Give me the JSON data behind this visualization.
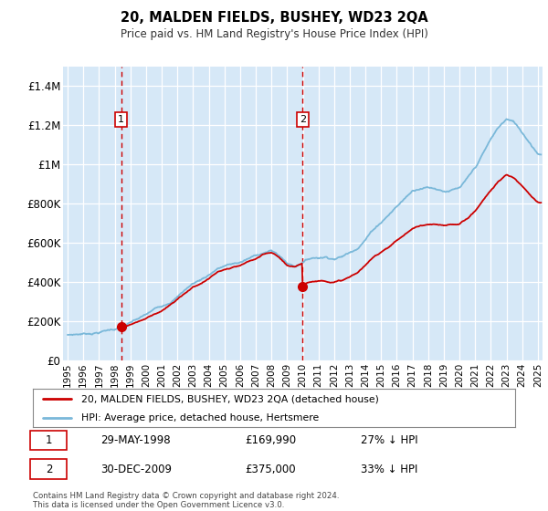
{
  "title": "20, MALDEN FIELDS, BUSHEY, WD23 2QA",
  "subtitle": "Price paid vs. HM Land Registry's House Price Index (HPI)",
  "ylim": [
    0,
    1500000
  ],
  "yticks": [
    0,
    200000,
    400000,
    600000,
    800000,
    1000000,
    1200000,
    1400000
  ],
  "ytick_labels": [
    "£0",
    "£200K",
    "£400K",
    "£600K",
    "£800K",
    "£1M",
    "£1.2M",
    "£1.4M"
  ],
  "plot_bg_color": "#d6e8f7",
  "grid_color": "#ffffff",
  "hpi_color": "#7ab8d9",
  "price_color": "#cc0000",
  "vline_color": "#cc0000",
  "ann1_x": 1998.41,
  "ann2_x": 2009.99,
  "price_p1": 169990,
  "price_p2": 375000,
  "legend_line1": "20, MALDEN FIELDS, BUSHEY, WD23 2QA (detached house)",
  "legend_line2": "HPI: Average price, detached house, Hertsmere",
  "footer": "Contains HM Land Registry data © Crown copyright and database right 2024.\nThis data is licensed under the Open Government Licence v3.0.",
  "xlim_start": 1994.7,
  "xlim_end": 2025.3,
  "hpi_data": {
    "1995.0": 130000,
    "1995.5": 133000,
    "1996.0": 136000,
    "1996.5": 140000,
    "1997.0": 146000,
    "1997.5": 155000,
    "1998.0": 163000,
    "1998.5": 175000,
    "1999.0": 188000,
    "1999.5": 205000,
    "2000.0": 222000,
    "2000.5": 245000,
    "2001.0": 265000,
    "2001.5": 290000,
    "2002.0": 318000,
    "2002.5": 355000,
    "2003.0": 385000,
    "2003.5": 405000,
    "2004.0": 430000,
    "2004.5": 460000,
    "2005.0": 475000,
    "2005.5": 482000,
    "2006.0": 490000,
    "2006.5": 505000,
    "2007.0": 520000,
    "2007.5": 538000,
    "2008.0": 545000,
    "2008.5": 520000,
    "2009.0": 480000,
    "2009.5": 465000,
    "2010.0": 490000,
    "2010.5": 510000,
    "2011.0": 515000,
    "2011.5": 520000,
    "2012.0": 515000,
    "2012.5": 525000,
    "2013.0": 545000,
    "2013.5": 575000,
    "2014.0": 620000,
    "2014.5": 670000,
    "2015.0": 710000,
    "2015.5": 750000,
    "2016.0": 790000,
    "2016.5": 830000,
    "2017.0": 870000,
    "2017.5": 890000,
    "2018.0": 895000,
    "2018.5": 890000,
    "2019.0": 880000,
    "2019.5": 885000,
    "2020.0": 890000,
    "2020.5": 930000,
    "2021.0": 980000,
    "2021.5": 1050000,
    "2022.0": 1120000,
    "2022.5": 1180000,
    "2023.0": 1220000,
    "2023.5": 1200000,
    "2024.0": 1150000,
    "2024.5": 1100000,
    "2025.0": 1050000
  }
}
